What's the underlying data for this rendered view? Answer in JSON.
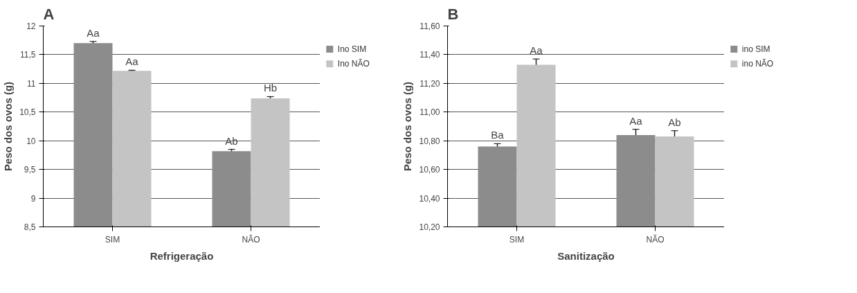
{
  "chart_data": [
    {
      "type": "bar",
      "title": "A",
      "xlabel": "Refrigeração",
      "ylabel": "Peso dos ovos (g)",
      "categories": [
        "SIM",
        "NÃO"
      ],
      "series": [
        {
          "name": "Ino SIM",
          "color": "#8c8c8c",
          "values": [
            11.7,
            9.82
          ],
          "errors": [
            0.03,
            0.03
          ],
          "value_labels": [
            "Aa",
            "Ab"
          ]
        },
        {
          "name": "Ino NÃO",
          "color": "#c4c4c4",
          "values": [
            11.22,
            10.74
          ],
          "errors": [
            0.01,
            0.03
          ],
          "value_labels": [
            "Aa",
            "Hb"
          ]
        }
      ],
      "ylim": [
        8.5,
        12
      ],
      "yticks": [
        {
          "value": 8.5,
          "label": "8,5"
        },
        9,
        {
          "value": 9.5,
          "label": "9,5"
        },
        10,
        {
          "value": 10.5,
          "label": "10,5"
        },
        11,
        {
          "value": 11.5,
          "label": "11,5"
        },
        12
      ],
      "grid": "y",
      "legend": "top right"
    },
    {
      "type": "bar",
      "title": "B",
      "xlabel": "Sanitização",
      "ylabel": "Peso dos ovos (g)",
      "categories": [
        "SIM",
        "NÃO"
      ],
      "series": [
        {
          "name": "ino SIM",
          "color": "#8c8c8c",
          "values": [
            10.76,
            10.84
          ],
          "errors": [
            0.02,
            0.04
          ],
          "value_labels": [
            "Ba",
            "Aa"
          ]
        },
        {
          "name": "ino NÃO",
          "color": "#c4c4c4",
          "values": [
            11.33,
            10.83
          ],
          "errors": [
            0.04,
            0.04
          ],
          "value_labels": [
            "Aa",
            "Ab"
          ]
        }
      ],
      "ylim": [
        10.2,
        11.6
      ],
      "yticks": [
        {
          "value": 10.2,
          "label": "10,20"
        },
        {
          "value": 10.4,
          "label": "10,40"
        },
        {
          "value": 10.6,
          "label": "10,60"
        },
        {
          "value": 10.8,
          "label": "10,80"
        },
        {
          "value": 11.0,
          "label": "11,00"
        },
        {
          "value": 11.2,
          "label": "11,20"
        },
        {
          "value": 11.4,
          "label": "11,40"
        },
        {
          "value": 11.6,
          "label": "11,60"
        }
      ],
      "grid": "y",
      "legend": "top right"
    }
  ]
}
